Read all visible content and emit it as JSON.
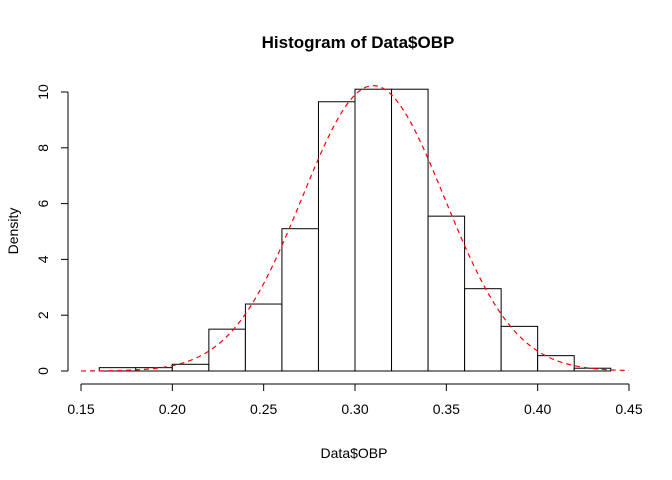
{
  "chart_data": {
    "type": "bar",
    "title": "Histogram of Data$OBP",
    "xlabel": "Data$OBP",
    "ylabel": "Density",
    "xlim": [
      0.15,
      0.45
    ],
    "ylim": [
      0,
      10
    ],
    "x_ticks": [
      "0.15",
      "0.20",
      "0.25",
      "0.30",
      "0.35",
      "0.40",
      "0.45"
    ],
    "y_ticks": [
      "0",
      "2",
      "4",
      "6",
      "8",
      "10"
    ],
    "bins": [
      {
        "start": 0.16,
        "end": 0.18,
        "density": 0.12
      },
      {
        "start": 0.18,
        "end": 0.2,
        "density": 0.12
      },
      {
        "start": 0.2,
        "end": 0.22,
        "density": 0.24
      },
      {
        "start": 0.22,
        "end": 0.24,
        "density": 1.5
      },
      {
        "start": 0.24,
        "end": 0.26,
        "density": 2.4
      },
      {
        "start": 0.26,
        "end": 0.28,
        "density": 5.1
      },
      {
        "start": 0.28,
        "end": 0.3,
        "density": 9.65
      },
      {
        "start": 0.3,
        "end": 0.32,
        "density": 10.1
      },
      {
        "start": 0.32,
        "end": 0.34,
        "density": 10.1
      },
      {
        "start": 0.34,
        "end": 0.36,
        "density": 5.55
      },
      {
        "start": 0.36,
        "end": 0.38,
        "density": 2.95
      },
      {
        "start": 0.38,
        "end": 0.4,
        "density": 1.6
      },
      {
        "start": 0.4,
        "end": 0.42,
        "density": 0.55
      },
      {
        "start": 0.42,
        "end": 0.44,
        "density": 0.1
      }
    ],
    "density_curve": {
      "type": "normal",
      "mean": 0.31,
      "sd": 0.039,
      "x_range": [
        0.15,
        0.45
      ],
      "color": "#ff0000",
      "line_style": "dashed"
    },
    "grid": false,
    "legend": "none"
  }
}
